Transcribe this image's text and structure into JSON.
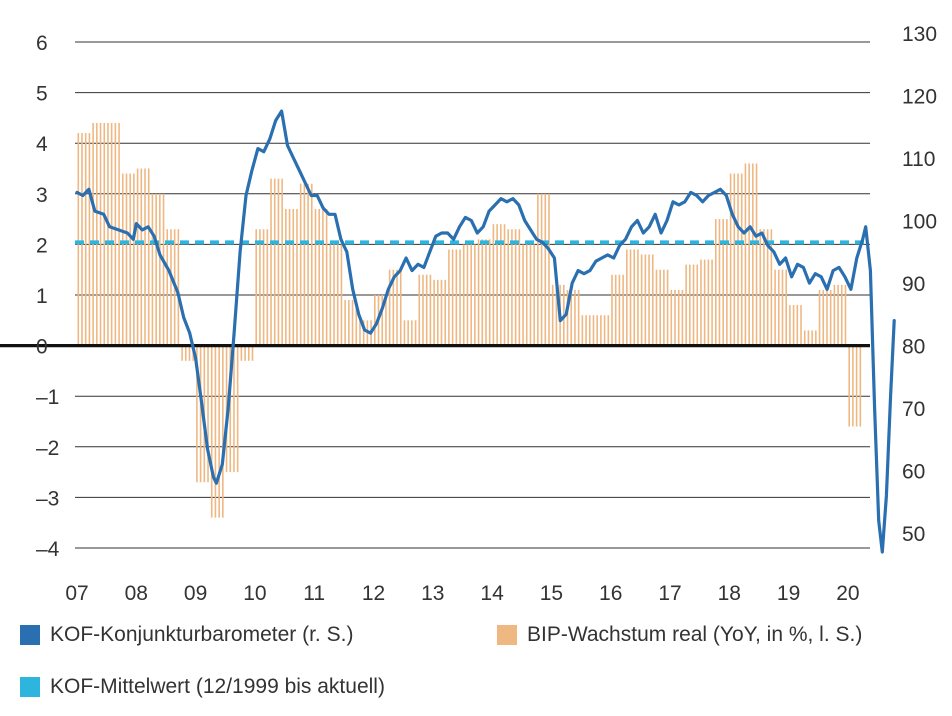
{
  "chart_data": {
    "type": "bar+line",
    "title": "",
    "colors": {
      "kof": "#2a6fb0",
      "gdp": "#efb883",
      "mean": "#2eb5de",
      "grid": "#333333",
      "zero": "#111111"
    },
    "x_ticks": [
      "07",
      "08",
      "09",
      "10",
      "11",
      "12",
      "13",
      "14",
      "15",
      "16",
      "17",
      "18",
      "19",
      "20"
    ],
    "left_axis": {
      "ticks": [
        "6",
        "5",
        "4",
        "3",
        "2",
        "1",
        "0",
        "–1",
        "–2",
        "–3",
        "–4"
      ],
      "range": [
        -4,
        6
      ]
    },
    "right_axis": {
      "ticks": [
        "130",
        "120",
        "110",
        "100",
        "90",
        "80",
        "70",
        "60",
        "50"
      ],
      "range": [
        47,
        130
      ]
    },
    "gdp_growth_quarterly": {
      "name": "BIP-Wachstum real (YoY, in %, l. S.)",
      "quarters": [
        "2007Q1",
        "2007Q2",
        "2007Q3",
        "2007Q4",
        "2008Q1",
        "2008Q2",
        "2008Q3",
        "2008Q4",
        "2009Q1",
        "2009Q2",
        "2009Q3",
        "2009Q4",
        "2010Q1",
        "2010Q2",
        "2010Q3",
        "2010Q4",
        "2011Q1",
        "2011Q2",
        "2011Q3",
        "2011Q4",
        "2012Q1",
        "2012Q2",
        "2012Q3",
        "2012Q4",
        "2013Q1",
        "2013Q2",
        "2013Q3",
        "2013Q4",
        "2014Q1",
        "2014Q2",
        "2014Q3",
        "2014Q4",
        "2015Q1",
        "2015Q2",
        "2015Q3",
        "2015Q4",
        "2016Q1",
        "2016Q2",
        "2016Q3",
        "2016Q4",
        "2017Q1",
        "2017Q2",
        "2017Q3",
        "2017Q4",
        "2018Q1",
        "2018Q2",
        "2018Q3",
        "2018Q4",
        "2019Q1",
        "2019Q2",
        "2019Q3",
        "2019Q4",
        "2020Q1"
      ],
      "values": [
        4.2,
        4.4,
        4.4,
        3.4,
        3.5,
        3.0,
        2.3,
        -0.3,
        -2.7,
        -3.4,
        -2.5,
        -0.3,
        2.3,
        3.3,
        2.7,
        3.2,
        2.7,
        2.0,
        0.9,
        0.5,
        1.0,
        1.5,
        0.5,
        1.4,
        1.3,
        1.9,
        2.0,
        2.1,
        2.4,
        2.3,
        2.0,
        3.0,
        1.2,
        1.1,
        0.6,
        0.6,
        1.4,
        1.9,
        1.8,
        1.5,
        1.1,
        1.6,
        1.7,
        2.5,
        3.4,
        3.6,
        2.3,
        1.5,
        0.8,
        0.3,
        1.1,
        1.2,
        -1.6
      ]
    },
    "kof_barometer": {
      "name": "KOF-Konjunkturbarometer (r. S.)",
      "points": [
        [
          2007.0,
          104.5
        ],
        [
          2007.1,
          104.0
        ],
        [
          2007.2,
          105.0
        ],
        [
          2007.3,
          101.5
        ],
        [
          2007.45,
          101.0
        ],
        [
          2007.55,
          99.0
        ],
        [
          2007.7,
          98.5
        ],
        [
          2007.85,
          98.0
        ],
        [
          2007.95,
          97.0
        ],
        [
          2008.0,
          99.5
        ],
        [
          2008.1,
          98.5
        ],
        [
          2008.2,
          99.0
        ],
        [
          2008.3,
          97.5
        ],
        [
          2008.4,
          94.5
        ],
        [
          2008.55,
          92.0
        ],
        [
          2008.7,
          88.5
        ],
        [
          2008.8,
          84.5
        ],
        [
          2008.9,
          82.0
        ],
        [
          2009.0,
          78.0
        ],
        [
          2009.1,
          71.0
        ],
        [
          2009.2,
          63.5
        ],
        [
          2009.3,
          59.0
        ],
        [
          2009.35,
          58.0
        ],
        [
          2009.45,
          61.0
        ],
        [
          2009.55,
          70.0
        ],
        [
          2009.65,
          82.0
        ],
        [
          2009.75,
          95.0
        ],
        [
          2009.85,
          104.0
        ],
        [
          2009.95,
          108.0
        ],
        [
          2010.05,
          111.5
        ],
        [
          2010.15,
          111.0
        ],
        [
          2010.25,
          113.0
        ],
        [
          2010.35,
          116.0
        ],
        [
          2010.45,
          117.5
        ],
        [
          2010.55,
          112.0
        ],
        [
          2010.65,
          110.0
        ],
        [
          2010.75,
          108.0
        ],
        [
          2010.85,
          106.0
        ],
        [
          2010.95,
          104.0
        ],
        [
          2011.05,
          104.0
        ],
        [
          2011.15,
          102.0
        ],
        [
          2011.25,
          101.0
        ],
        [
          2011.35,
          101.0
        ],
        [
          2011.45,
          97.0
        ],
        [
          2011.55,
          95.0
        ],
        [
          2011.65,
          89.0
        ],
        [
          2011.75,
          85.0
        ],
        [
          2011.85,
          82.5
        ],
        [
          2011.95,
          82.0
        ],
        [
          2012.05,
          83.5
        ],
        [
          2012.15,
          86.0
        ],
        [
          2012.25,
          89.0
        ],
        [
          2012.35,
          91.0
        ],
        [
          2012.45,
          92.0
        ],
        [
          2012.55,
          94.0
        ],
        [
          2012.65,
          92.0
        ],
        [
          2012.75,
          93.0
        ],
        [
          2012.85,
          92.5
        ],
        [
          2012.95,
          95.0
        ],
        [
          2013.05,
          97.5
        ],
        [
          2013.15,
          98.0
        ],
        [
          2013.25,
          98.0
        ],
        [
          2013.35,
          97.0
        ],
        [
          2013.45,
          99.0
        ],
        [
          2013.55,
          100.5
        ],
        [
          2013.65,
          100.0
        ],
        [
          2013.75,
          98.0
        ],
        [
          2013.85,
          99.0
        ],
        [
          2013.95,
          101.5
        ],
        [
          2014.05,
          102.5
        ],
        [
          2014.15,
          103.5
        ],
        [
          2014.25,
          103.0
        ],
        [
          2014.35,
          103.5
        ],
        [
          2014.45,
          102.5
        ],
        [
          2014.55,
          100.0
        ],
        [
          2014.65,
          98.5
        ],
        [
          2014.75,
          97.0
        ],
        [
          2014.85,
          96.5
        ],
        [
          2014.95,
          95.5
        ],
        [
          2015.05,
          94.0
        ],
        [
          2015.15,
          84.0
        ],
        [
          2015.25,
          85.0
        ],
        [
          2015.35,
          90.0
        ],
        [
          2015.45,
          92.0
        ],
        [
          2015.55,
          91.5
        ],
        [
          2015.65,
          92.0
        ],
        [
          2015.75,
          93.5
        ],
        [
          2015.85,
          94.0
        ],
        [
          2015.95,
          94.5
        ],
        [
          2016.05,
          94.0
        ],
        [
          2016.15,
          96.0
        ],
        [
          2016.25,
          97.0
        ],
        [
          2016.35,
          99.0
        ],
        [
          2016.45,
          100.0
        ],
        [
          2016.55,
          98.0
        ],
        [
          2016.65,
          99.0
        ],
        [
          2016.75,
          101.0
        ],
        [
          2016.85,
          98.0
        ],
        [
          2016.95,
          100.0
        ],
        [
          2017.05,
          103.0
        ],
        [
          2017.15,
          102.5
        ],
        [
          2017.25,
          103.0
        ],
        [
          2017.35,
          104.5
        ],
        [
          2017.45,
          104.0
        ],
        [
          2017.55,
          103.0
        ],
        [
          2017.65,
          104.0
        ],
        [
          2017.75,
          104.5
        ],
        [
          2017.85,
          105.0
        ],
        [
          2017.95,
          104.0
        ],
        [
          2018.05,
          101.0
        ],
        [
          2018.15,
          99.0
        ],
        [
          2018.25,
          98.0
        ],
        [
          2018.35,
          99.0
        ],
        [
          2018.45,
          97.5
        ],
        [
          2018.55,
          98.0
        ],
        [
          2018.65,
          96.0
        ],
        [
          2018.75,
          95.0
        ],
        [
          2018.85,
          93.0
        ],
        [
          2018.95,
          94.0
        ],
        [
          2019.05,
          91.0
        ],
        [
          2019.15,
          93.0
        ],
        [
          2019.25,
          92.5
        ],
        [
          2019.35,
          90.0
        ],
        [
          2019.45,
          91.5
        ],
        [
          2019.55,
          91.0
        ],
        [
          2019.65,
          89.0
        ],
        [
          2019.75,
          92.0
        ],
        [
          2019.85,
          92.5
        ],
        [
          2019.95,
          91.0
        ],
        [
          2020.05,
          89.0
        ],
        [
          2020.15,
          94.0
        ],
        [
          2020.25,
          97.0
        ],
        [
          2020.3,
          99.0
        ],
        [
          2020.38,
          92.0
        ],
        [
          2020.45,
          70.0
        ],
        [
          2020.52,
          52.0
        ],
        [
          2020.58,
          47.0
        ],
        [
          2020.65,
          56.0
        ],
        [
          2020.72,
          72.0
        ],
        [
          2020.78,
          84.0
        ]
      ]
    },
    "kof_mean": {
      "name": "KOF-Mittelwert (12/1999 bis aktuell)",
      "value": 96.5
    }
  },
  "legend": [
    {
      "label": "KOF-Konjunkturbarometer (r. S.)",
      "color": "#2a6fb0"
    },
    {
      "label": "BIP-Wachstum real (YoY, in %, l. S.)",
      "color": "#efb883"
    },
    {
      "label": "KOF-Mittelwert (12/1999 bis aktuell)",
      "color": "#2eb5de"
    }
  ]
}
